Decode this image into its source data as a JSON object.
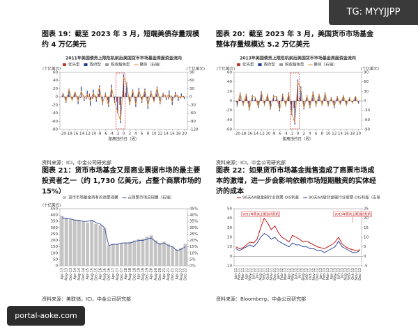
{
  "badge": "TG: MYYJJPP",
  "watermark": "portal-aoke.com",
  "chart_data": [
    {
      "type": "bar",
      "figure_title": "图表 19：截至 2023 年 3 月，短端美债存量规模约 4 万亿美元",
      "title": "2011年美国债务上限危机前后美国货币市场基金周度资金流向",
      "y_label": "(十亿美元)",
      "y2_label": "(十亿美元)",
      "x_label": "距离违约日（周）",
      "source": "资料来源：ICI，中金公司研究部",
      "x": [
        -20,
        -19,
        -18,
        -17,
        -16,
        -15,
        -14,
        -13,
        -12,
        -11,
        -10,
        -9,
        -8,
        -7,
        -6,
        -5,
        -4,
        -3,
        -2,
        -1,
        0,
        1,
        2,
        3,
        4,
        5,
        6,
        7,
        8,
        9,
        10,
        11,
        12,
        13,
        14,
        15,
        16,
        17,
        18,
        19,
        20
      ],
      "xlim": [
        -21,
        21
      ],
      "xticks": [
        -20,
        -18,
        -16,
        -14,
        -12,
        -10,
        -8,
        -6,
        -4,
        -2,
        0,
        2,
        4,
        6,
        8,
        10,
        12,
        14,
        16,
        18,
        20
      ],
      "ylim": [
        -80,
        60
      ],
      "yticks": [
        -80,
        -60,
        -40,
        -20,
        0,
        20,
        40,
        60
      ],
      "y2lim": [
        -120,
        90
      ],
      "y2ticks": [
        -120,
        -90,
        -60,
        -30,
        0,
        30,
        60,
        90
      ],
      "series": [
        {
          "name": "优先型",
          "type": "bar",
          "color": "#c0392b",
          "values": [
            3,
            -2,
            5,
            -4,
            6,
            2,
            -3,
            4,
            -6,
            8,
            -5,
            3,
            7,
            -4,
            2,
            -8,
            5,
            -3,
            -12,
            -20,
            15,
            10,
            -6,
            4,
            -3,
            5,
            -2,
            6,
            -4,
            3,
            -5,
            7,
            -3,
            2,
            4,
            -6,
            3,
            -2,
            5,
            -4,
            2
          ]
        },
        {
          "name": "政府型",
          "type": "bar",
          "color": "#1f3a93",
          "values": [
            10,
            -15,
            20,
            -8,
            12,
            -18,
            25,
            -10,
            15,
            -22,
            18,
            -12,
            28,
            -20,
            10,
            -25,
            30,
            -15,
            -40,
            -65,
            55,
            35,
            -20,
            18,
            -25,
            22,
            -15,
            20,
            -30,
            15,
            -12,
            25,
            -18,
            10,
            -8,
            15,
            -20,
            12,
            -10,
            8,
            -5
          ]
        },
        {
          "name": "税收豁免型",
          "type": "bar",
          "color": "#9a9a9a",
          "values": [
            1,
            -1,
            2,
            -1,
            0,
            1,
            -2,
            1,
            0,
            -1,
            2,
            -1,
            1,
            0,
            -2,
            1,
            -1,
            2,
            -3,
            -4,
            3,
            2,
            -1,
            1,
            0,
            -1,
            2,
            -1,
            1,
            0,
            -2,
            1,
            0,
            -1,
            1,
            2,
            -1,
            0,
            1,
            -1,
            0
          ]
        },
        {
          "name": "整体（右轴）",
          "type": "line",
          "axis": "y2",
          "color": "#e08a2e",
          "values": [
            14,
            -18,
            27,
            -13,
            18,
            -15,
            20,
            -5,
            9,
            -15,
            15,
            -10,
            36,
            -24,
            10,
            -32,
            34,
            -16,
            -55,
            -89,
            73,
            47,
            -27,
            23,
            -28,
            26,
            -15,
            25,
            -33,
            18,
            -19,
            33,
            -21,
            11,
            -3,
            11,
            -18,
            10,
            -4,
            3,
            -3
          ]
        }
      ]
    },
    {
      "type": "bar",
      "figure_title": "图表 20：截至 2023 年 3 月，美国货币市场基金整体存量规模达 5.2 万亿美元",
      "title": "2013年美国债务上限危机前后美国货币市场基金周度资金流向",
      "y_label": "(十亿美元)",
      "y2_label": "(十亿美元)",
      "x_label": "距离违约日（周）",
      "source": "资料来源：ICI，中金公司研究部",
      "x": [
        -20,
        -19,
        -18,
        -17,
        -16,
        -15,
        -14,
        -13,
        -12,
        -11,
        -10,
        -9,
        -8,
        -7,
        -6,
        -5,
        -4,
        -3,
        -2,
        -1,
        0,
        1,
        2,
        3,
        4,
        5,
        6,
        7,
        8,
        9,
        10,
        11,
        12,
        13,
        14,
        15,
        16,
        17,
        18,
        19,
        20
      ],
      "xlim": [
        -21,
        21
      ],
      "xticks": [
        -20,
        -18,
        -16,
        -14,
        -12,
        -10,
        -8,
        -6,
        -4,
        -2,
        0,
        2,
        4,
        6,
        8,
        10,
        12,
        14,
        16,
        18,
        20
      ],
      "ylim": [
        -60,
        60
      ],
      "yticks": [
        -60,
        -40,
        -20,
        0,
        20,
        40,
        60
      ],
      "y2lim": [
        -90,
        90
      ],
      "y2ticks": [
        -90,
        -60,
        -30,
        0,
        30,
        60,
        90
      ],
      "series": [
        {
          "name": "优先型",
          "type": "bar",
          "color": "#c0392b",
          "values": [
            -3,
            4,
            -2,
            5,
            -6,
            3,
            2,
            -4,
            6,
            -3,
            4,
            -5,
            3,
            2,
            -6,
            4,
            -3,
            5,
            -8,
            -15,
            12,
            8,
            -5,
            3,
            -4,
            6,
            -3,
            4,
            -2,
            5,
            -3,
            2,
            -4,
            3,
            -2,
            4,
            -3,
            2,
            -1,
            3,
            -2
          ]
        },
        {
          "name": "政府型",
          "type": "bar",
          "color": "#1f3a93",
          "values": [
            -12,
            18,
            -10,
            15,
            -20,
            12,
            8,
            -15,
            20,
            -10,
            15,
            -18,
            12,
            10,
            -22,
            15,
            -12,
            18,
            -30,
            -50,
            45,
            30,
            -18,
            12,
            -15,
            20,
            -12,
            15,
            -10,
            18,
            -12,
            8,
            -15,
            10,
            -8,
            12,
            -10,
            8,
            -5,
            10,
            -6
          ]
        },
        {
          "name": "税收豁免型",
          "type": "bar",
          "color": "#9a9a9a",
          "values": [
            -1,
            1,
            0,
            1,
            -1,
            0,
            1,
            -1,
            1,
            0,
            1,
            -1,
            0,
            1,
            -1,
            1,
            0,
            1,
            -2,
            -3,
            2,
            1,
            -1,
            0,
            -1,
            1,
            0,
            1,
            -1,
            1,
            0,
            -1,
            1,
            0,
            -1,
            1,
            0,
            -1,
            0,
            1,
            0
          ]
        },
        {
          "name": "整体（右轴）",
          "type": "line",
          "axis": "y2",
          "color": "#e08a2e",
          "values": [
            -16,
            23,
            -12,
            21,
            -27,
            15,
            11,
            -20,
            27,
            -13,
            20,
            -24,
            15,
            13,
            -29,
            20,
            -15,
            24,
            -40,
            -68,
            59,
            39,
            -24,
            15,
            -20,
            27,
            -15,
            20,
            -13,
            24,
            -15,
            9,
            -18,
            13,
            -11,
            17,
            -13,
            9,
            -6,
            14,
            -8
          ]
        }
      ]
    },
    {
      "type": "bar",
      "figure_title": "图表 21：货币市场基金又是商业票据市场的最主要投资者之一（约 1,730 亿美元，占整个商票市场的 15%）",
      "y_label": "(十亿美元)",
      "source": "资料来源：美联储，ICI，中金公司研究部",
      "categories": [
        "Apr-13",
        "Aug-13",
        "Dec-13",
        "Apr-14",
        "Aug-14",
        "Dec-14",
        "Apr-15",
        "Aug-15",
        "Dec-15",
        "Apr-16",
        "Aug-16",
        "Dec-16",
        "Apr-17",
        "Aug-17",
        "Dec-17",
        "Apr-18",
        "Aug-18",
        "Dec-18",
        "Apr-19",
        "Aug-19",
        "Dec-19",
        "Apr-20",
        "Aug-20",
        "Dec-20",
        "Apr-21",
        "Aug-21",
        "Dec-21",
        "Apr-22",
        "Aug-22",
        "Dec-22"
      ],
      "ylim": [
        0,
        450
      ],
      "yticks": [
        0,
        50,
        100,
        150,
        200,
        250,
        300,
        350,
        400,
        450
      ],
      "y2lim": [
        0,
        45
      ],
      "y2ticks": [
        {
          "value": 0,
          "label": "0%"
        },
        {
          "value": 5,
          "label": "5%"
        },
        {
          "value": 10,
          "label": "10%"
        },
        {
          "value": 15,
          "label": "15%"
        },
        {
          "value": 20,
          "label": "20%"
        },
        {
          "value": 25,
          "label": "25%"
        },
        {
          "value": 30,
          "label": "30%"
        },
        {
          "value": 35,
          "label": "35%"
        },
        {
          "value": 40,
          "label": "40%"
        },
        {
          "value": 45,
          "label": "45%"
        }
      ],
      "series": [
        {
          "name": "货币市场基金持有的商票规模",
          "type": "bar",
          "color": "#c4c4c4",
          "values": [
            395,
            380,
            370,
            365,
            360,
            350,
            340,
            355,
            330,
            320,
            300,
            160,
            170,
            175,
            180,
            185,
            190,
            200,
            210,
            215,
            230,
            240,
            200,
            180,
            190,
            170,
            150,
            130,
            140,
            173
          ]
        },
        {
          "name": "占商票市场总规模（右轴）",
          "type": "line",
          "axis": "y2",
          "color": "#2e4a9e",
          "values": [
            38,
            37,
            37,
            36,
            36,
            35,
            35,
            36,
            34,
            33,
            30,
            16,
            17,
            17,
            18,
            18,
            18,
            19,
            20,
            20,
            21,
            22,
            19,
            17,
            18,
            16,
            15,
            12,
            13,
            15
          ]
        }
      ]
    },
    {
      "type": "line",
      "figure_title": "图表 22：如果货币市场基金抛售造成了商票市场成本的激增，进一步会影响依赖市场短期融资的实体经济的成本",
      "source": "资料来源：Bloomberg，中金公司研究部",
      "categories": [
        "Jan-11",
        "Feb-11",
        "Mar-11",
        "Apr-11",
        "May-11",
        "Jun-11",
        "Jul-11",
        "Aug-11",
        "Sep-11",
        "Oct-11",
        "Nov-11",
        "Dec-11",
        "Jan-12",
        "Feb-12",
        "Mar-12",
        "Apr-12",
        "May-12",
        "Jun-12",
        "Jul-12",
        "Aug-12",
        "Sep-12",
        "Oct-12",
        "Nov-12",
        "Dec-12",
        "Jan-13",
        "Feb-13",
        "Mar-13",
        "Apr-13",
        "May-13",
        "Jun-13",
        "Jul-13",
        "Aug-13",
        "Sep-13",
        "Oct-13",
        "Nov-13",
        "Dec-13"
      ],
      "ylim": [
        -10,
        50
      ],
      "yticks": [
        -10,
        0,
        10,
        20,
        30,
        40,
        50
      ],
      "y2lim": [
        -5,
        25
      ],
      "y2ticks": [
        -5,
        0,
        5,
        10,
        15,
        20,
        25
      ],
      "annotations": [
        {
          "text": "2011年债务上限违约危机",
          "x": "Aug-11"
        },
        {
          "text": "2013年债务上限违约危机",
          "x": "Oct-13"
        }
      ],
      "series": [
        {
          "name": "90天AA级金融行业商票-OIS利差",
          "type": "line",
          "color": "#c00000",
          "values": [
            10,
            8,
            9,
            12,
            15,
            14,
            18,
            30,
            40,
            35,
            28,
            32,
            25,
            20,
            18,
            15,
            22,
            20,
            18,
            15,
            16,
            14,
            12,
            10,
            9,
            8,
            10,
            12,
            15,
            20,
            13,
            10,
            8,
            7,
            6,
            7
          ]
        },
        {
          "name": "90天AA级非金融行业商票-OIS利差（右轴）",
          "type": "line",
          "axis": "y2",
          "color": "#1f3a93",
          "values": [
            4,
            3,
            4,
            5,
            6,
            5,
            7,
            10,
            12,
            11,
            9,
            10,
            8,
            7,
            6,
            5,
            7,
            6,
            6,
            5,
            5,
            4,
            4,
            3,
            3,
            2,
            3,
            4,
            5,
            8,
            5,
            4,
            3,
            2,
            2,
            3
          ]
        }
      ]
    }
  ]
}
